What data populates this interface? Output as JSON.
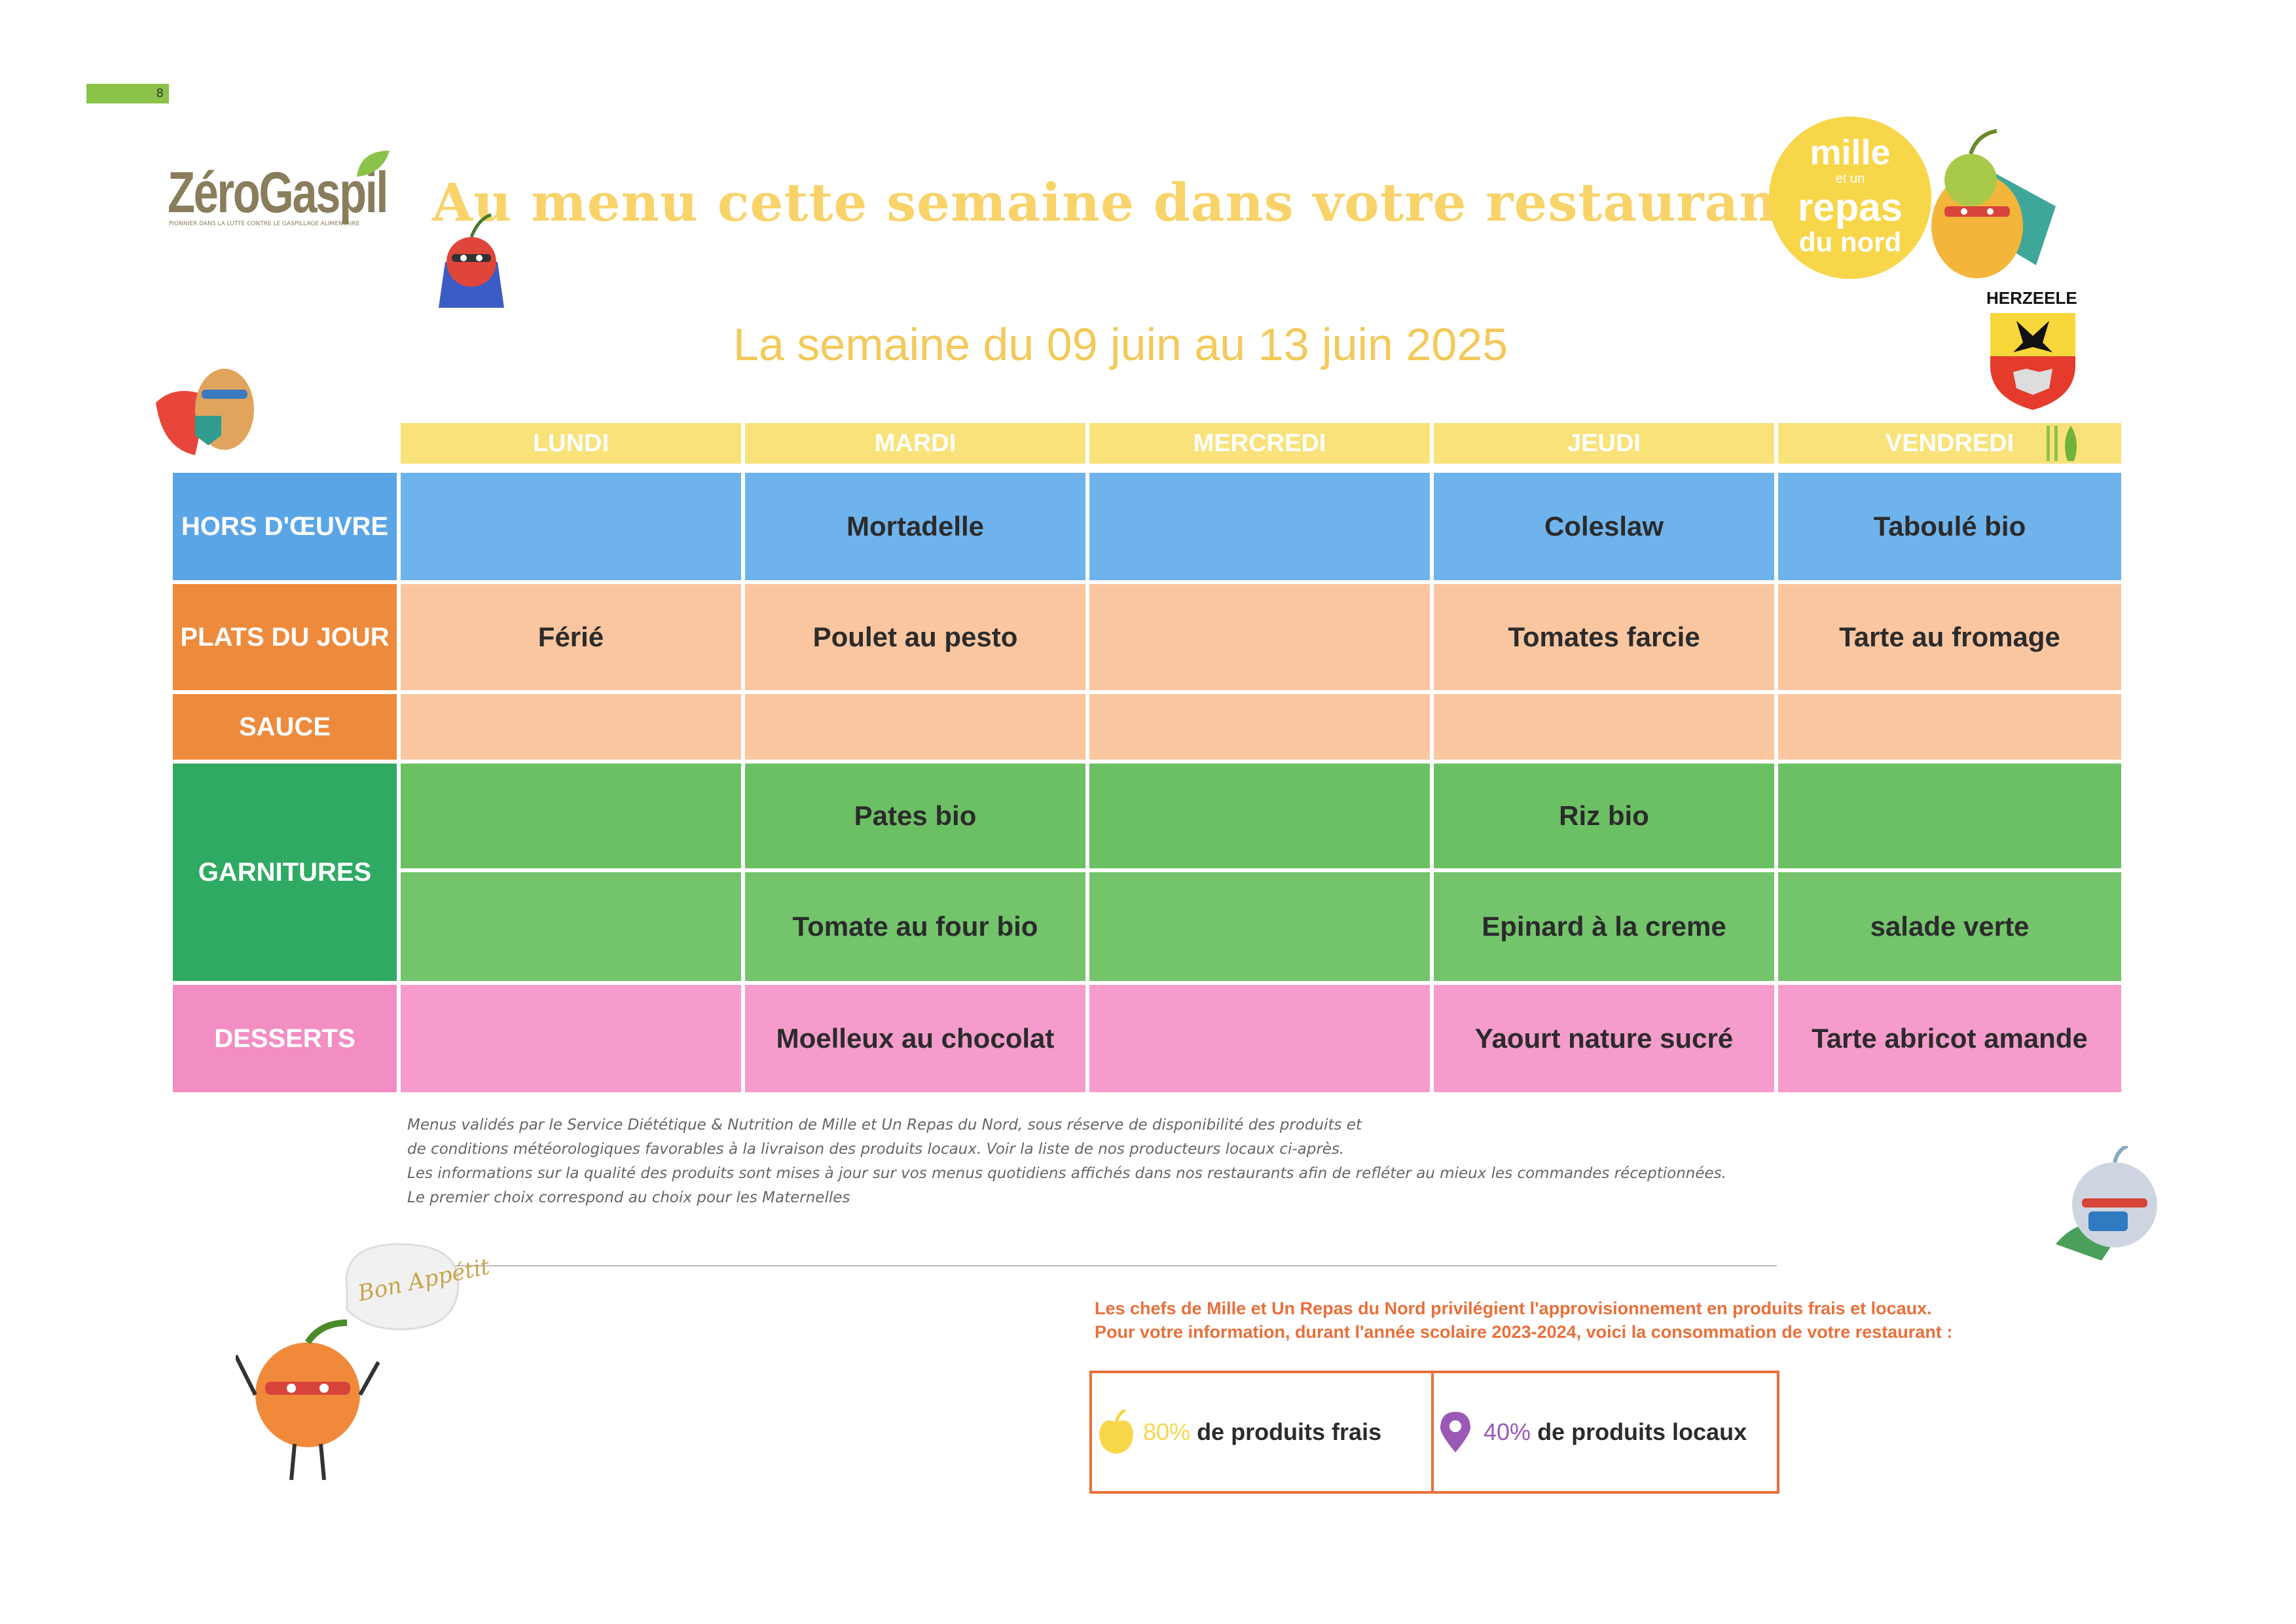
{
  "page_number": "8",
  "brand": {
    "name": "ZéroGaspil",
    "tagline": "PIONNIER DANS LA LUTTE CONTRE LE GASPILLAGE ALIMENTAIRE"
  },
  "title": "Au menu cette semaine dans votre restaurant",
  "subtitle": "La semaine du 09 juin au 13 juin 2025",
  "logo": {
    "line1": "mille",
    "line2": "et un",
    "line3": "repas",
    "line4": "du nord"
  },
  "town": "HERZEELE",
  "days": [
    "LUNDI",
    "MARDI",
    "MERCREDI",
    "JEUDI",
    "VENDREDI"
  ],
  "rows": {
    "hors_oeuvre": {
      "label": "HORS D'ŒUVRE",
      "cells": [
        "",
        "Mortadelle",
        "",
        "Coleslaw",
        "Taboulé bio"
      ]
    },
    "plats": {
      "label": "PLATS DU JOUR",
      "cells": [
        "Férié",
        "Poulet au pesto",
        "",
        "Tomates farcie",
        "Tarte au fromage"
      ]
    },
    "sauce": {
      "label": "SAUCE",
      "cells": [
        "",
        "",
        "",
        "",
        ""
      ]
    },
    "garnitures": {
      "label": "GARNITURES",
      "cells1": [
        "",
        "Pates bio",
        "",
        "Riz bio",
        ""
      ],
      "cells2": [
        "",
        "Tomate au four bio",
        "",
        "Epinard à la creme",
        "salade verte"
      ]
    },
    "desserts": {
      "label": "DESSERTS",
      "cells": [
        "",
        "Moelleux au chocolat",
        "",
        "Yaourt nature sucré",
        "Tarte abricot amande"
      ]
    }
  },
  "notes": [
    "Menus validés par le Service Diététique & Nutrition de Mille et Un Repas du Nord, sous réserve de disponibilité des produits et",
    "de conditions météorologiques favorables à la livraison des produits locaux. Voir la liste de nos producteurs locaux ci-après.",
    "Les informations sur la qualité des produits sont mises à jour sur vos menus quotidiens affichés dans nos restaurants afin de refléter au mieux les commandes réceptionnées.",
    "Le premier choix correspond au choix pour les Maternelles"
  ],
  "chefs": [
    "Les chefs de Mille et Un Repas du Nord privilégient l'approvisionnement en produits frais et locaux.",
    "Pour votre information, durant l'année scolaire 2023-2024, voici la consommation de votre restaurant :"
  ],
  "stats": {
    "fresh": {
      "value": "80%",
      "label": "de produits frais",
      "icon": "apple-icon"
    },
    "local": {
      "value": "40%",
      "label": "de produits locaux",
      "icon": "location-pin-icon"
    }
  },
  "bon_appetit": "Bon Appétit"
}
